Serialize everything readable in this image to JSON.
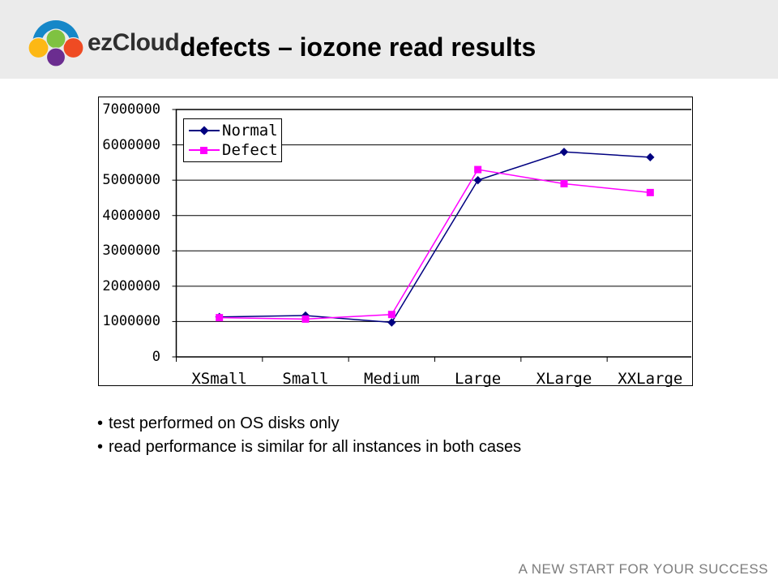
{
  "header": {
    "logo_text": "ezCloud",
    "title": "defects – iozone read results"
  },
  "logo_colors": {
    "arc_blue": "#1687c8",
    "green": "#7fc241",
    "yellow": "#fdb814",
    "orange": "#ef4b23",
    "purple": "#6b2d90"
  },
  "chart_data": {
    "type": "line",
    "categories": [
      "XSmall",
      "Small",
      "Medium",
      "Large",
      "XLarge",
      "XXLarge"
    ],
    "series": [
      {
        "name": "Normal",
        "color": "#000080",
        "marker": "diamond",
        "values": [
          1130000,
          1170000,
          975000,
          5000000,
          5800000,
          5650000
        ]
      },
      {
        "name": "Defect",
        "color": "#ff00ff",
        "marker": "square",
        "values": [
          1110000,
          1070000,
          1200000,
          5300000,
          4900000,
          4650000
        ]
      }
    ],
    "ylim": [
      0,
      7000000
    ],
    "ytick_interval": 1000000,
    "ytick_labels": [
      "0",
      "1000000",
      "2000000",
      "3000000",
      "4000000",
      "5000000",
      "6000000",
      "7000000"
    ],
    "grid": "horizontal",
    "legend_position": "top-left"
  },
  "bullets": [
    "test performed on OS disks only",
    "read performance is similar for all instances in both cases"
  ],
  "footer": {
    "tagline": "A NEW START FOR YOUR SUCCESS"
  }
}
